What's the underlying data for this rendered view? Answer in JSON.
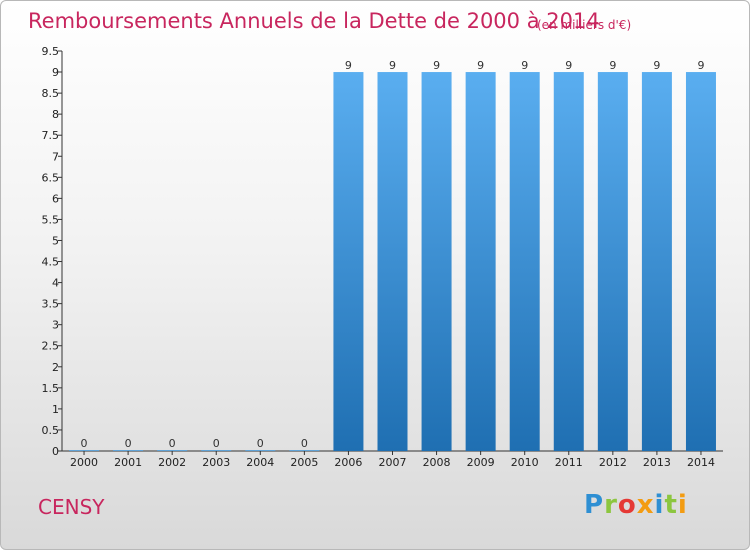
{
  "header": {
    "title": "Remboursements Annuels de la Dette de 2000 à 2014",
    "subtitle": "(en milliers d'€)"
  },
  "footer": {
    "commune": "CENSY",
    "logo_text": "Proxiti"
  },
  "chart_data": {
    "type": "bar",
    "title": "Remboursements Annuels de la Dette de 2000 à 2014",
    "subtitle": "(en milliers d'€)",
    "xlabel": "",
    "ylabel": "",
    "categories": [
      "2000",
      "2001",
      "2002",
      "2003",
      "2004",
      "2005",
      "2006",
      "2007",
      "2008",
      "2009",
      "2010",
      "2011",
      "2012",
      "2013",
      "2014"
    ],
    "values": [
      0,
      0,
      0,
      0,
      0,
      0,
      9,
      9,
      9,
      9,
      9,
      9,
      9,
      9,
      9
    ],
    "data_labels": [
      "0",
      "0",
      "0",
      "0",
      "0",
      "0",
      "9",
      "9",
      "9",
      "9",
      "9",
      "9",
      "9",
      "9",
      "9"
    ],
    "ylim": [
      0,
      9.5
    ],
    "yticks": [
      "0",
      "0.5",
      "1",
      "1.5",
      "2",
      "2.5",
      "3",
      "3.5",
      "4",
      "4.5",
      "5",
      "5.5",
      "6",
      "6.5",
      "7",
      "7.5",
      "8",
      "8.5",
      "9",
      "9.5"
    ],
    "grid": false,
    "bar_color_top": "#5aaef0",
    "bar_color_bottom": "#1f6fb2"
  }
}
